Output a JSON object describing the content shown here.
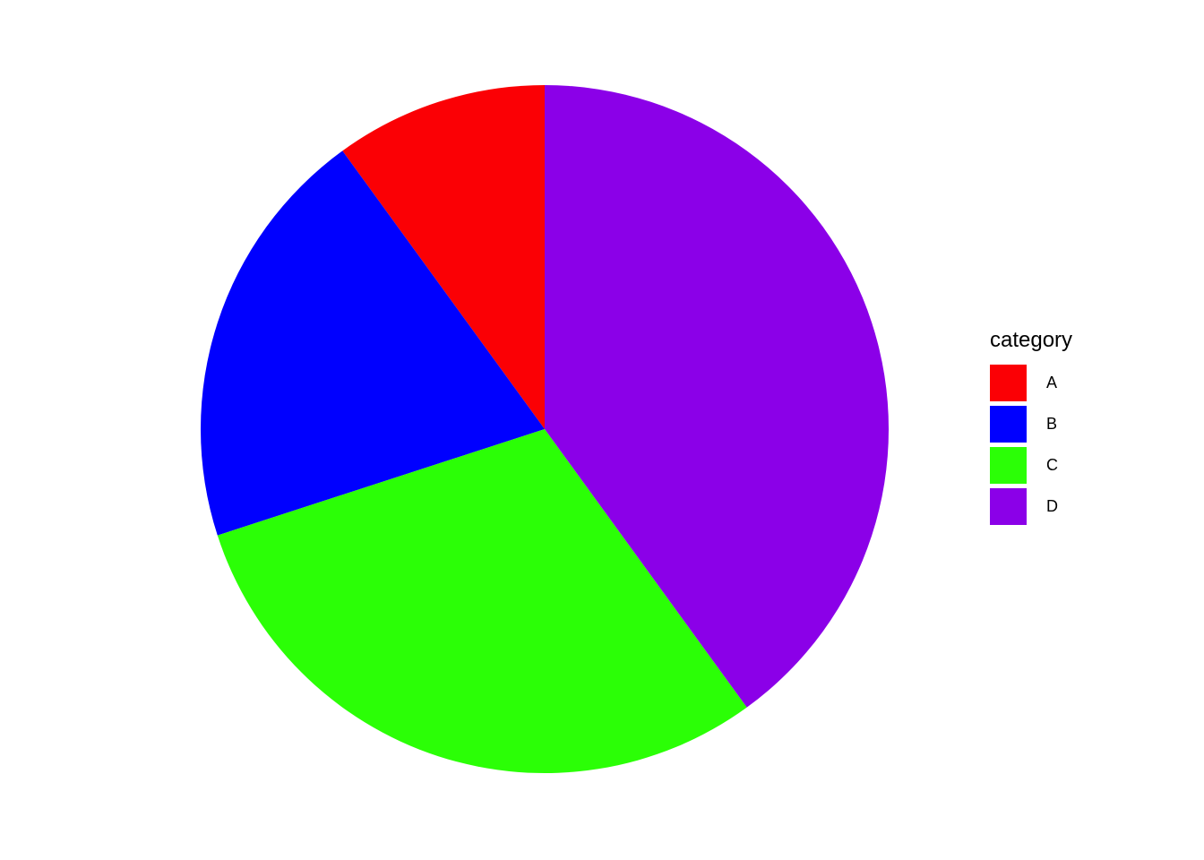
{
  "chart_data": {
    "type": "pie",
    "title": "",
    "categories": [
      "A",
      "B",
      "C",
      "D"
    ],
    "values": [
      10,
      20,
      30,
      40
    ],
    "unit": "percent",
    "colors": [
      "#fb0005",
      "#0000ff",
      "#2bff06",
      "#8b00e8"
    ],
    "start_angle": "top",
    "direction": "counterclockwise",
    "legend_position": "right",
    "legend_title": "category",
    "grid": false,
    "axes": false,
    "background": "#ffffff"
  },
  "legend": {
    "title": "category",
    "items": [
      {
        "label": "A",
        "color": "#fb0005"
      },
      {
        "label": "B",
        "color": "#0000ff"
      },
      {
        "label": "C",
        "color": "#2bff06"
      },
      {
        "label": "D",
        "color": "#8b00e8"
      }
    ]
  }
}
